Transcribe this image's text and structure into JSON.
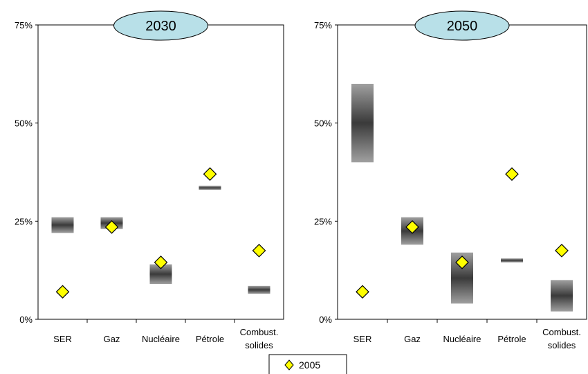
{
  "chart_data": [
    {
      "type": "range-bar",
      "title": "2030",
      "categories": [
        "SER",
        "Gaz",
        "Nucléaire",
        "Pétrole",
        "Combust. solides"
      ],
      "y_ticks": [
        "0%",
        "25%",
        "50%",
        "75%"
      ],
      "ylim": [
        0,
        75
      ],
      "series": [
        {
          "name": "",
          "kind": "range",
          "low": [
            22,
            23,
            9,
            33,
            6.5
          ],
          "high": [
            26,
            26,
            14,
            34,
            8.5
          ]
        },
        {
          "name": "2005",
          "kind": "marker",
          "values": [
            7,
            23.5,
            14.5,
            37,
            17.5
          ],
          "color": "#ffff00"
        }
      ]
    },
    {
      "type": "range-bar",
      "title": "2050",
      "categories": [
        "SER",
        "Gaz",
        "Nucléaire",
        "Pétrole",
        "Combust. solides"
      ],
      "y_ticks": [
        "0%",
        "25%",
        "50%",
        "75%"
      ],
      "ylim": [
        0,
        75
      ],
      "series": [
        {
          "name": "",
          "kind": "range",
          "low": [
            40,
            19,
            4,
            14.5,
            2
          ],
          "high": [
            60,
            26,
            17,
            15.5,
            10
          ]
        },
        {
          "name": "2005",
          "kind": "marker",
          "values": [
            7,
            23.5,
            14.5,
            37,
            17.5
          ],
          "color": "#ffff00"
        }
      ]
    }
  ],
  "legend": {
    "label": "2005"
  },
  "colors": {
    "title_ellipse": "#b8e0e8",
    "marker": "#ffff00",
    "range_dark": "#3a3a3a",
    "range_light": "#bdbdbd"
  }
}
